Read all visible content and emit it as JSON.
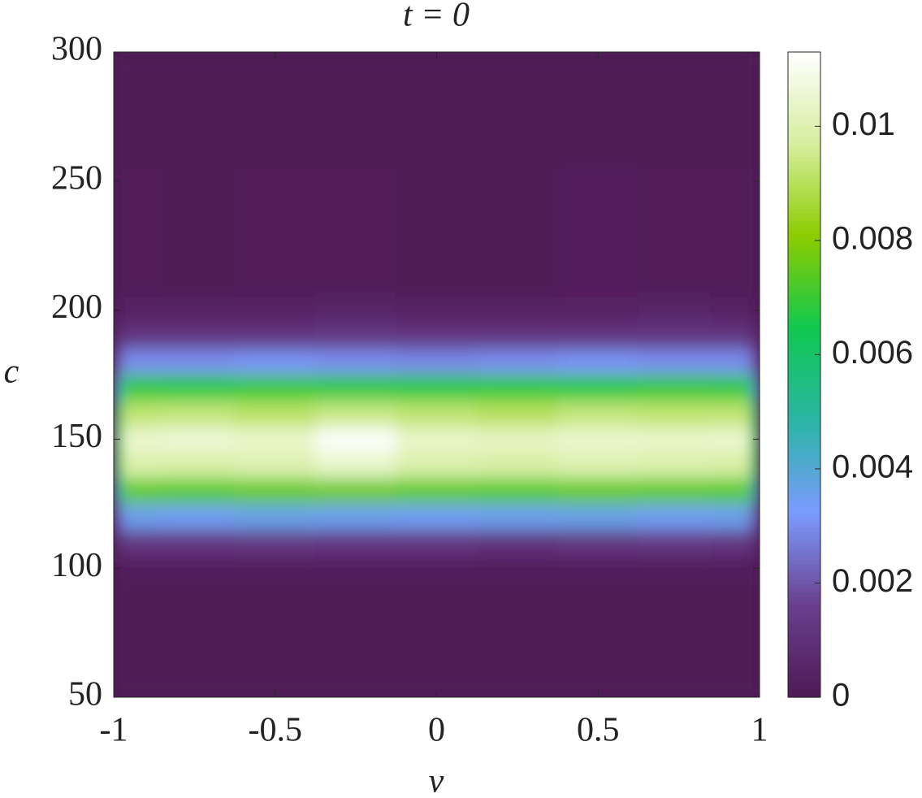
{
  "chart_data": {
    "type": "contour",
    "title": "t = 0",
    "xlabel": "v",
    "ylabel": "c",
    "x": [
      -1,
      -0.95,
      -0.75,
      -0.5,
      -0.25,
      0,
      0.25,
      0.5,
      0.75,
      0.95,
      1
    ],
    "y": [
      50,
      90,
      100,
      110,
      120,
      130,
      140,
      150,
      160,
      170,
      180,
      190,
      200,
      210,
      300
    ],
    "z": [
      [
        0,
        0,
        0,
        0,
        0,
        0,
        0,
        0,
        0,
        0,
        0
      ],
      [
        0,
        0,
        0,
        0,
        0,
        0,
        0,
        0,
        0,
        0,
        0
      ],
      [
        0.0001,
        0.0002,
        0.0002,
        0.0002,
        0.0002,
        0.0002,
        0.0002,
        0.0002,
        0.0002,
        0.0002,
        0.0001
      ],
      [
        0.0007,
        0.0012,
        0.0012,
        0.0013,
        0.0012,
        0.0012,
        0.0011,
        0.0012,
        0.0013,
        0.0012,
        0.0007
      ],
      [
        0.002,
        0.0035,
        0.0034,
        0.0036,
        0.0035,
        0.0034,
        0.0035,
        0.0036,
        0.0034,
        0.0035,
        0.002
      ],
      [
        0.0045,
        0.0075,
        0.0074,
        0.0076,
        0.0077,
        0.0075,
        0.0074,
        0.0076,
        0.0075,
        0.0074,
        0.0045
      ],
      [
        0.0062,
        0.0099,
        0.0098,
        0.01,
        0.0104,
        0.0099,
        0.0098,
        0.01,
        0.0099,
        0.0098,
        0.0062
      ],
      [
        0.0066,
        0.0105,
        0.0106,
        0.0104,
        0.0112,
        0.0104,
        0.0103,
        0.0105,
        0.0104,
        0.0105,
        0.0066
      ],
      [
        0.0058,
        0.0092,
        0.0093,
        0.0091,
        0.0094,
        0.0092,
        0.009,
        0.0093,
        0.0092,
        0.0092,
        0.0058
      ],
      [
        0.0042,
        0.0068,
        0.0067,
        0.0069,
        0.0068,
        0.0067,
        0.0068,
        0.0067,
        0.0069,
        0.0068,
        0.0042
      ],
      [
        0.0018,
        0.003,
        0.003,
        0.0031,
        0.003,
        0.0029,
        0.003,
        0.0031,
        0.003,
        0.003,
        0.0018
      ],
      [
        0.0007,
        0.0012,
        0.0012,
        0.0012,
        0.0013,
        0.0012,
        0.0012,
        0.0012,
        0.0012,
        0.0012,
        0.0007
      ],
      [
        0.0002,
        0.0004,
        0.0004,
        0.0004,
        0.0005,
        0.0004,
        0.0004,
        0.0004,
        0.0005,
        0.0004,
        0.0002
      ],
      [
        0,
        0.0001,
        0,
        0.0001,
        0.0001,
        0,
        0,
        0.0002,
        0.0001,
        0.0001,
        0
      ],
      [
        0,
        0,
        0,
        0,
        0,
        0,
        0,
        0,
        0,
        0,
        0
      ]
    ],
    "xlim": [
      -1,
      1
    ],
    "xticks": [
      -1,
      -0.5,
      0,
      0.5,
      1
    ],
    "ylim": [
      50,
      300
    ],
    "yticks": [
      50,
      100,
      150,
      200,
      250,
      300
    ],
    "clim": [
      0,
      0.0113
    ],
    "cticks": [
      0,
      0.002,
      0.004,
      0.006,
      0.008,
      0.01
    ],
    "colormap": [
      "#4f1a56",
      "#6a3f8e",
      "#7b9bff",
      "#2ab5a5",
      "#10c850",
      "#8ccc00",
      "#d6ee9e",
      "#ffffff"
    ]
  }
}
